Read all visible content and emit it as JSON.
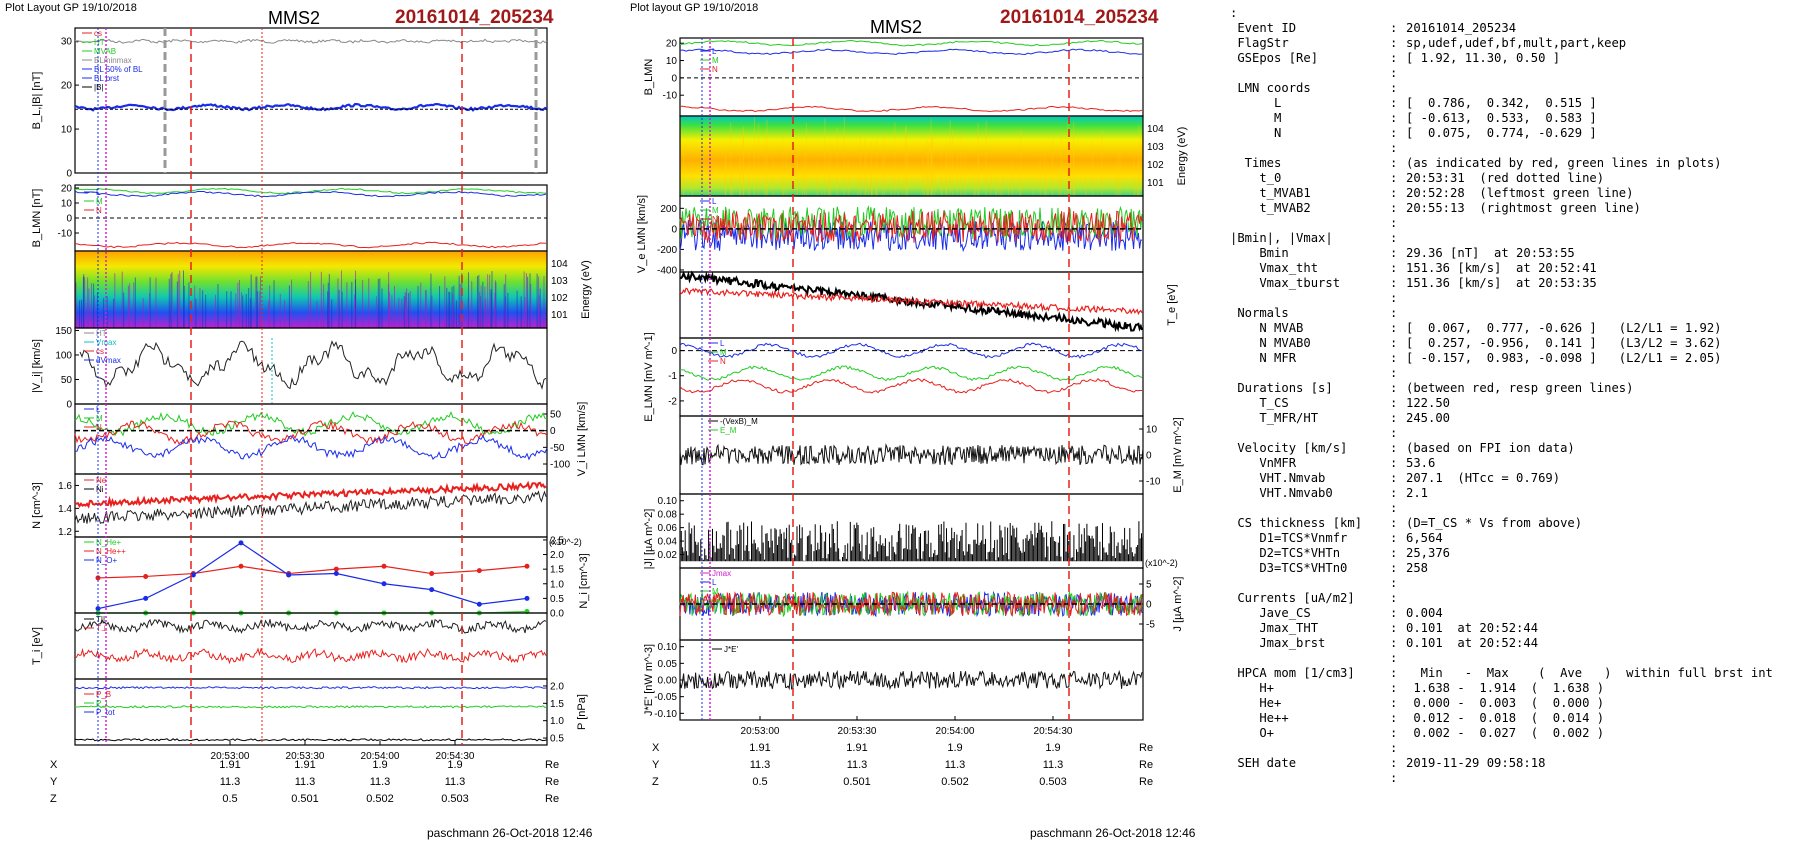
{
  "left": {
    "plot_layout": "Plot Layout GP 19/10/2018",
    "spacecraft": "MMS2",
    "event_id": "20161014_205234",
    "footer": "paschmann 26-Oct-2018 12:46",
    "time_ticks": [
      "20:53:00",
      "20:53:30",
      "20:54:00",
      "20:54:30"
    ],
    "position_rows": [
      {
        "label": "X",
        "values": [
          "1.91",
          "1.91",
          "1.9",
          "1.9"
        ],
        "unit": "Re"
      },
      {
        "label": "Y",
        "values": [
          "11.3",
          "11.3",
          "11.3",
          "11.3"
        ],
        "unit": "Re"
      },
      {
        "label": "Z",
        "values": [
          "0.5",
          "0.501",
          "0.502",
          "0.503"
        ],
        "unit": "Re"
      }
    ]
  },
  "middle": {
    "plot_layout": "Plot layout GP 19/10/2018",
    "spacecraft": "MMS2",
    "event_id": "20161014_205234",
    "footer": "paschmann 26-Oct-2018 12:46",
    "time_ticks": [
      "20:53:00",
      "20:53:30",
      "20:54:00",
      "20:54:30"
    ],
    "position_rows": [
      {
        "label": "X",
        "values": [
          "1.91",
          "1.91",
          "1.9",
          "1.9"
        ],
        "unit": "Re"
      },
      {
        "label": "Y",
        "values": [
          "11.3",
          "11.3",
          "11.3",
          "11.3"
        ],
        "unit": "Re"
      },
      {
        "label": "Z",
        "values": [
          "0.5",
          "0.501",
          "0.502",
          "0.503"
        ],
        "unit": "Re"
      }
    ]
  },
  "colors": {
    "red": "#e8201c",
    "green": "#22cc22",
    "blue": "#1a2ce8",
    "black": "#000000",
    "magenta": "#d020d0",
    "gray": "#888888",
    "title_red": "#a01818"
  },
  "chart_data": [
    {
      "type": "line",
      "panel": "left-B",
      "ylabel": "B_L,|B| [nT]",
      "yticks": [
        "0",
        "10",
        "20",
        "30"
      ],
      "ylim": [
        0,
        33
      ],
      "legend": [
        "cs",
        "HT",
        "MVAB",
        "BLminmax",
        "BL 50% of BL",
        "BL brst",
        "|B|"
      ],
      "series": [
        {
          "name": "|B|",
          "color": "#000000",
          "level": 30
        },
        {
          "name": "BL brst",
          "color": "#1a2ce8",
          "level": 15
        }
      ],
      "annotations": [
        "dashed line at 14.5 nT"
      ]
    },
    {
      "type": "line",
      "panel": "left-BLMN",
      "ylabel": "B_LMN [nT]",
      "yticks": [
        "-10",
        "0",
        "10",
        "20"
      ],
      "ylim": [
        -22,
        22
      ],
      "legend": [
        "L",
        "M",
        "N"
      ],
      "series": [
        {
          "name": "L",
          "color": "#22cc22",
          "level": 18
        },
        {
          "name": "M",
          "color": "#1a2ce8",
          "level": 16
        },
        {
          "name": "N",
          "color": "#e8201c",
          "level": -18
        }
      ]
    },
    {
      "type": "heatmap",
      "panel": "left-ion-spectrogram",
      "ylabel": "Energy (eV)",
      "yticks": [
        "10^1",
        "10^2",
        "10^3",
        "10^4"
      ]
    },
    {
      "type": "line",
      "panel": "left-Vi-magnitude",
      "ylabel": "|V_i| [km/s]",
      "yticks": [
        "0",
        "50",
        "100",
        "150"
      ],
      "ylim": [
        0,
        155
      ],
      "legend": [
        "HT",
        "Vmax",
        "cs",
        "dVmax"
      ],
      "series": [
        {
          "name": "|Vi|",
          "color": "#000000",
          "level": 80
        }
      ]
    },
    {
      "type": "line",
      "panel": "left-ViLMN",
      "ylabel": "V_i LMN [km/s]",
      "yticks": [
        "50",
        "0",
        "-50",
        "-100"
      ],
      "ylim": [
        -130,
        80
      ],
      "legend": [
        "L",
        "M",
        "N"
      ],
      "series": [
        {
          "name": "M",
          "color": "#22cc22",
          "level": 20
        },
        {
          "name": "N",
          "color": "#e8201c",
          "level": -5
        },
        {
          "name": "L",
          "color": "#1a2ce8",
          "level": -50
        }
      ]
    },
    {
      "type": "line",
      "panel": "left-density",
      "ylabel": "N [cm^-3]",
      "yticks": [
        "1.2",
        "1.4",
        "1.6"
      ],
      "ylim": [
        1.15,
        1.7
      ],
      "legend": [
        "Ne",
        "Ni"
      ],
      "series": [
        {
          "name": "Ne",
          "color": "#e8201c",
          "from": 1.44,
          "to": 1.6
        },
        {
          "name": "Ni",
          "color": "#000000",
          "from": 1.31,
          "to": 1.5
        }
      ]
    },
    {
      "type": "line",
      "panel": "left-heavy-ions",
      "ylabel": "N_i [cm^-3]",
      "scale_note": "(x10^-2)",
      "yticks": [
        "0.0",
        "0.5",
        "1.0",
        "1.5",
        "2.0",
        "2.5"
      ],
      "ylim": [
        0,
        2.6
      ],
      "legend": [
        "N_He+",
        "N_He++",
        "N_O+"
      ],
      "x": [
        0,
        1,
        2,
        3,
        4,
        5,
        6,
        7,
        8,
        9
      ],
      "series": [
        {
          "name": "N_He++",
          "color": "#e8201c",
          "values": [
            1.2,
            1.25,
            1.35,
            1.6,
            1.35,
            1.5,
            1.6,
            1.35,
            1.45,
            1.6
          ]
        },
        {
          "name": "N_O+",
          "color": "#1a2ce8",
          "values": [
            0.15,
            0.5,
            1.3,
            2.4,
            1.3,
            1.35,
            1.0,
            0.8,
            0.3,
            0.5
          ]
        },
        {
          "name": "N_He+",
          "color": "#22cc22",
          "values": [
            0.0,
            0.0,
            0.0,
            0.0,
            0.0,
            0.0,
            0.0,
            0.0,
            0.0,
            0.05
          ]
        }
      ]
    },
    {
      "type": "line",
      "panel": "left-temperature",
      "ylabel": "T_i [eV]",
      "legend": [
        "T||",
        "T⊥"
      ],
      "series": [
        {
          "name": "T||",
          "color": "#000000",
          "level": 0.8
        },
        {
          "name": "T⊥",
          "color": "#e8201c",
          "level": 0.35
        }
      ]
    },
    {
      "type": "line",
      "panel": "left-pressure",
      "ylabel": "P [nPa]",
      "yticks": [
        "0.5",
        "1.0",
        "1.5",
        "2.0"
      ],
      "ylim": [
        0.3,
        2.2
      ],
      "legend": [
        "P_B",
        "P_i",
        "P_tot"
      ],
      "series": [
        {
          "name": "P_tot",
          "color": "#1a2ce8",
          "level": 1.95
        },
        {
          "name": "P_i",
          "color": "#22cc22",
          "level": 1.4
        },
        {
          "name": "P_B",
          "color": "#000000",
          "level": 0.45
        }
      ]
    },
    {
      "type": "line",
      "panel": "mid-BLMN",
      "ylabel": "B_LMN",
      "yticks": [
        "20",
        "10",
        "0",
        "-10"
      ],
      "ylim": [
        -22,
        23
      ],
      "legend": [
        "L",
        "M",
        "N"
      ],
      "series": [
        {
          "name": "L",
          "color": "#22cc22",
          "level": 20
        },
        {
          "name": "M",
          "color": "#1a2ce8",
          "level": 15
        },
        {
          "name": "N",
          "color": "#e8201c",
          "level": -18
        }
      ]
    },
    {
      "type": "heatmap",
      "panel": "mid-electron-spectrogram",
      "ylabel": "Energy (eV)",
      "yticks": [
        "10^1",
        "10^2",
        "10^3",
        "10^4"
      ]
    },
    {
      "type": "line",
      "panel": "mid-VeLMN",
      "ylabel": "V_e LMN [km/s]",
      "yticks": [
        "200",
        "0",
        "-200",
        "-400"
      ],
      "ylim": [
        -420,
        320
      ],
      "legend": [
        "L",
        "M",
        "N"
      ],
      "series": [
        {
          "name": "L",
          "color": "#1a2ce8",
          "level": -60
        },
        {
          "name": "M",
          "color": "#22cc22",
          "level": 60
        },
        {
          "name": "N",
          "color": "#e8201c",
          "level": 20
        }
      ]
    },
    {
      "type": "line",
      "panel": "mid-Te",
      "ylabel": "T_e [eV]",
      "legend": [
        "T||",
        "T⊥"
      ],
      "series": [
        {
          "name": "T||",
          "color": "#000000",
          "from": 0.95,
          "to": 0.15
        },
        {
          "name": "T⊥",
          "color": "#e8201c",
          "from": 0.72,
          "to": 0.4
        }
      ]
    },
    {
      "type": "line",
      "panel": "mid-ELMN",
      "ylabel": "E_LMN [mV m^-1]",
      "yticks": [
        "0",
        "-1",
        "-2"
      ],
      "ylim": [
        -2.6,
        0.5
      ],
      "legend": [
        "L",
        "M",
        "N"
      ],
      "series": [
        {
          "name": "L",
          "color": "#1a2ce8",
          "level": 0.0
        },
        {
          "name": "M",
          "color": "#22cc22",
          "level": -0.9
        },
        {
          "name": "N",
          "color": "#e8201c",
          "level": -1.4
        }
      ]
    },
    {
      "type": "line",
      "panel": "mid-EM",
      "ylabel": "E_M [mV m^-2]",
      "yticks": [
        "10",
        "0",
        "-10"
      ],
      "ylim": [
        -15,
        15
      ],
      "legend": [
        "-(VexB)_M",
        "E_M"
      ],
      "series": [
        {
          "name": "E_M",
          "color": "#000000",
          "level": 0
        }
      ]
    },
    {
      "type": "line",
      "panel": "mid-Jmag",
      "ylabel": "|J| [µA m^-2]",
      "yticks": [
        "0.02",
        "0.04",
        "0.06",
        "0.08",
        "0.10"
      ],
      "ylim": [
        0.0,
        0.11
      ],
      "series": [
        {
          "name": "|J|",
          "color": "#000000",
          "level": 0.04
        }
      ]
    },
    {
      "type": "line",
      "panel": "mid-JLMN",
      "ylabel": "J [µA m^-2]",
      "scale_note": "(x10^-2)",
      "yticks": [
        "5",
        "0",
        "-5"
      ],
      "ylim": [
        -9,
        9
      ],
      "legend": [
        "Jmax",
        "L",
        "M",
        "N"
      ],
      "series": [
        {
          "name": "L",
          "color": "#1a2ce8",
          "level": 0
        },
        {
          "name": "M",
          "color": "#22cc22",
          "level": 0
        },
        {
          "name": "N",
          "color": "#e8201c",
          "level": 0
        }
      ]
    },
    {
      "type": "line",
      "panel": "mid-JdotE",
      "ylabel": "J*E' [nW m^-3]",
      "yticks": [
        "0.10",
        "0.05",
        "0.00",
        "-0.05",
        "-0.10"
      ],
      "ylim": [
        -0.12,
        0.12
      ],
      "legend": [
        "J*E'"
      ],
      "series": [
        {
          "name": "J*E'",
          "color": "#000000",
          "level": 0
        }
      ]
    }
  ],
  "summary": {
    "lines": [
      {
        "t": ":"
      },
      {
        "k": " Event ID",
        "v": "20161014_205234"
      },
      {
        "k": " FlagStr",
        "v": "sp,udef,udef,bf,mult,part,keep"
      },
      {
        "k": " GSEpos [Re]",
        "v": "[ 1.92, 11.30, 0.50 ]"
      },
      {
        "k": "",
        "v": ""
      },
      {
        "k": " LMN coords",
        "v": ""
      },
      {
        "k": "      L",
        "v": "[  0.786,  0.342,  0.515 ]"
      },
      {
        "k": "      M",
        "v": "[ -0.613,  0.533,  0.583 ]"
      },
      {
        "k": "      N",
        "v": "[  0.075,  0.774, -0.629 ]"
      },
      {
        "k": "",
        "v": ""
      },
      {
        "k": "  Times",
        "v": "(as indicated by red, green lines in plots)"
      },
      {
        "k": "    t_0",
        "v": "20:53:31  (red dotted line)"
      },
      {
        "k": "    t_MVAB1",
        "v": "20:52:28  (leftmost green line)"
      },
      {
        "k": "    t_MVAB2",
        "v": "20:55:13  (rightmost green line)"
      },
      {
        "k": "",
        "v": ""
      },
      {
        "k": "|Bmin|, |Vmax|",
        "v": ""
      },
      {
        "k": "    Bmin",
        "v": "29.36 [nT]  at 20:53:55"
      },
      {
        "k": "    Vmax_tht",
        "v": "151.36 [km/s]  at 20:52:41"
      },
      {
        "k": "    Vmax_tburst",
        "v": "151.36 [km/s]  at 20:53:35"
      },
      {
        "k": "",
        "v": ""
      },
      {
        "k": " Normals",
        "v": ""
      },
      {
        "k": "    N MVAB",
        "v": "[  0.067,  0.777, -0.626 ]   (L2/L1 = 1.92)"
      },
      {
        "k": "    N MVAB0",
        "v": "[  0.257, -0.956,  0.141 ]   (L3/L2 = 3.62)"
      },
      {
        "k": "    N MFR",
        "v": "[ -0.157,  0.983, -0.098 ]   (L2/L1 = 2.05)"
      },
      {
        "k": "",
        "v": ""
      },
      {
        "k": " Durations [s]",
        "v": "(between red, resp green lines)"
      },
      {
        "k": "    T_CS",
        "v": "122.50"
      },
      {
        "k": "    T_MFR/HT",
        "v": "245.00"
      },
      {
        "k": "",
        "v": ""
      },
      {
        "k": " Velocity [km/s]",
        "v": "(based on FPI ion data)"
      },
      {
        "k": "    VnMFR",
        "v": "53.6"
      },
      {
        "k": "    VHT.Nmvab",
        "v": "207.1  (HTcc = 0.769)"
      },
      {
        "k": "    VHT.Nmvab0",
        "v": "2.1"
      },
      {
        "k": "",
        "v": ""
      },
      {
        "k": " CS thickness [km]",
        "v": "(D=T_CS * Vs from above)"
      },
      {
        "k": "    D1=TCS*Vnmfr",
        "v": "6,564"
      },
      {
        "k": "    D2=TCS*VHTn",
        "v": "25,376"
      },
      {
        "k": "    D3=TCS*VHTn0",
        "v": "258"
      },
      {
        "k": "",
        "v": ""
      },
      {
        "k": " Currents [uA/m2]",
        "v": ""
      },
      {
        "k": "    Jave_CS",
        "v": "0.004"
      },
      {
        "k": "    Jmax_THT",
        "v": "0.101  at 20:52:44"
      },
      {
        "k": "    Jmax_brst",
        "v": "0.101  at 20:52:44"
      },
      {
        "k": "",
        "v": ""
      },
      {
        "k": " HPCA mom [1/cm3]",
        "v": "  Min   -  Max    (  Ave   )  within full brst int"
      },
      {
        "k": "    H+",
        "v": " 1.638 -  1.914  (  1.638 )"
      },
      {
        "k": "    He+",
        "v": " 0.000 -  0.003  (  0.000 )"
      },
      {
        "k": "    He++",
        "v": " 0.012 -  0.018  (  0.014 )"
      },
      {
        "k": "    O+",
        "v": " 0.002 -  0.027  (  0.002 )"
      },
      {
        "k": "",
        "v": ""
      },
      {
        "k": " SEH date",
        "v": "2019-11-29 09:58:18"
      },
      {
        "k": "",
        "v": ""
      }
    ]
  }
}
